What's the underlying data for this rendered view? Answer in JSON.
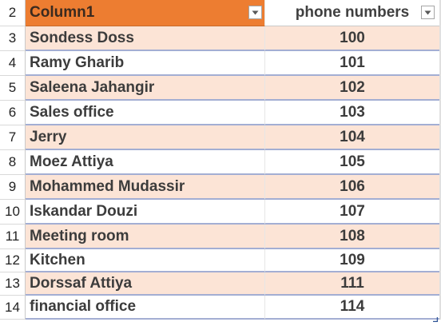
{
  "table": {
    "header": {
      "row_number": "2",
      "column_a": "Column1",
      "column_b": "phone numbers"
    },
    "rows": [
      {
        "row_number": "3",
        "name": "Sondess Doss",
        "phone": "100"
      },
      {
        "row_number": "4",
        "name": "Ramy Gharib",
        "phone": "101"
      },
      {
        "row_number": "5",
        "name": "Saleena Jahangir",
        "phone": "102"
      },
      {
        "row_number": "6",
        "name": "Sales office",
        "phone": "103"
      },
      {
        "row_number": "7",
        "name": "Jerry",
        "phone": "104"
      },
      {
        "row_number": "8",
        "name": "Moez Attiya",
        "phone": "105"
      },
      {
        "row_number": "9",
        "name": "Mohammed Mudassir",
        "phone": "106"
      },
      {
        "row_number": "10",
        "name": "Iskandar Douzi",
        "phone": "107"
      },
      {
        "row_number": "11",
        "name": "Meeting room",
        "phone": "108"
      },
      {
        "row_number": "12",
        "name": "Kitchen",
        "phone": "109"
      },
      {
        "row_number": "13",
        "name": "Dorssaf Attiya",
        "phone": "111"
      },
      {
        "row_number": "14",
        "name": "financial office",
        "phone": "114"
      }
    ]
  },
  "colors": {
    "header_accent": "#ed7d31",
    "band_fill": "#fce4d6",
    "row_separator": "#a3aed3"
  },
  "icons": {
    "filter": "filter-dropdown-icon",
    "resize": "table-resize-handle-icon"
  }
}
